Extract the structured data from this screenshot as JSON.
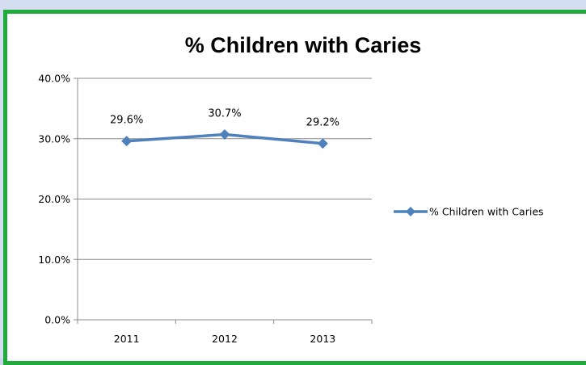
{
  "chart_data": {
    "type": "line",
    "title": "% Children with Caries",
    "categories": [
      "2011",
      "2012",
      "2013"
    ],
    "series": [
      {
        "name": "% Children with Caries",
        "values": [
          29.6,
          30.7,
          29.2
        ],
        "labels": [
          "29.6%",
          "30.7%",
          "29.2%"
        ],
        "color": "#4f81bd",
        "marker": "diamond"
      }
    ],
    "xlabel": "",
    "ylabel": "",
    "ylim": [
      0,
      40
    ],
    "yticks": [
      0,
      10,
      20,
      30,
      40
    ],
    "ytick_labels": [
      "0.0%",
      "10.0%",
      "20.0%",
      "30.0%",
      "40.0%"
    ],
    "grid": true,
    "legend_position": "right"
  }
}
